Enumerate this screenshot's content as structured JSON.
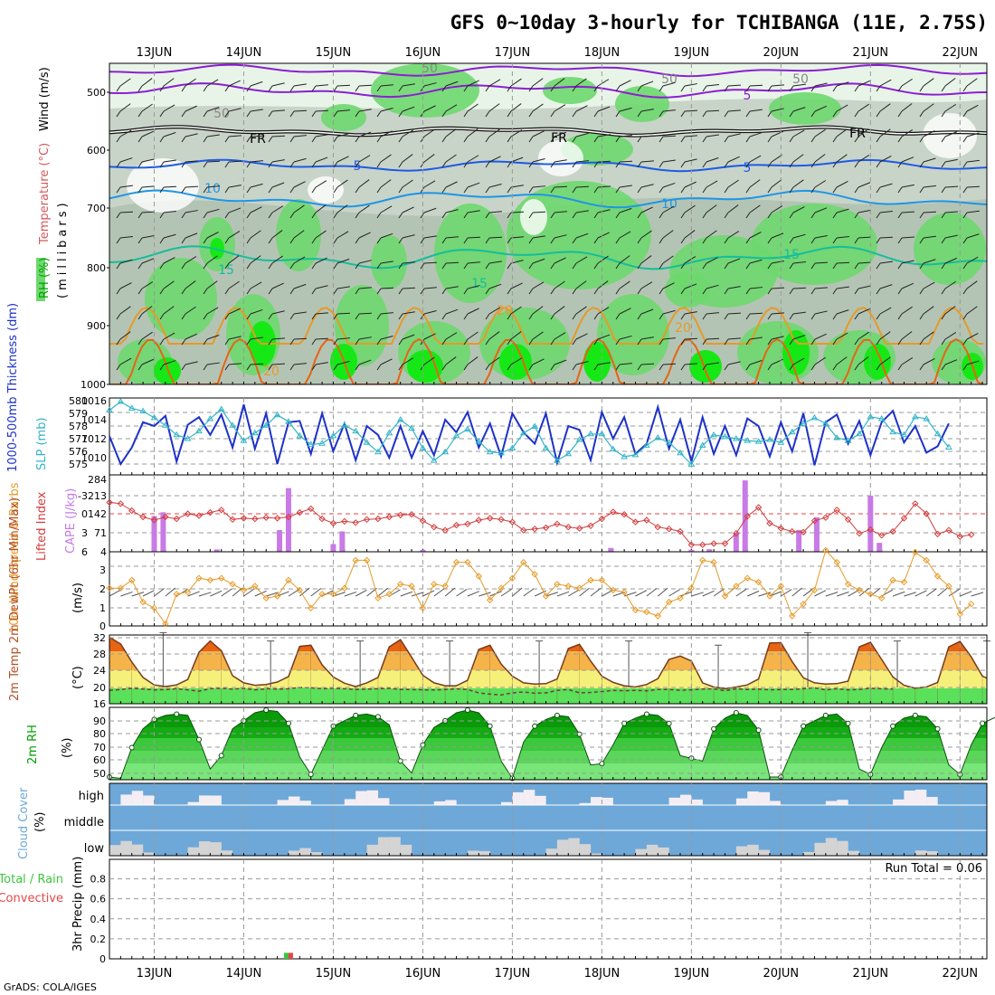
{
  "title": "GFS 0~10day 3-hourly for TCHIBANGA (11E, 2.75S)",
  "credit": "GrADS: COLA/IGES",
  "dates": [
    "13JUN",
    "14JUN",
    "15JUN",
    "16JUN",
    "17JUN",
    "18JUN",
    "19JUN",
    "20JUN",
    "21JUN",
    "22JUN"
  ],
  "colors": {
    "rh_light": "#e8f4e8",
    "rh_mid": "#c8d4c8",
    "rh_dark": "#b4c4b4",
    "rh_green": "#6ed86e",
    "rh_bright": "#16e816",
    "temp_purple": "#8c1ed2",
    "temp_black": "#111111",
    "temp_blue": "#1e5ae6",
    "temp_lightblue": "#1e96e6",
    "temp_teal": "#14be9a",
    "temp_orange": "#e69a28",
    "temp_darkorange": "#e66414",
    "temp_magenta": "#d2147a",
    "thickness": "#1e32c8",
    "slp": "#32b4c8",
    "li": "#d23c3c",
    "cape": "#c87ae6",
    "wind": "#e69a28",
    "barb": "#555555",
    "temp_fill_hot": "#e66414",
    "temp_fill_warm": "#f5b44a",
    "temp_fill_mild": "#f5f07a",
    "dew_fill": "#5ae05a",
    "rh2m_dark": "#0a9a0a",
    "rh2m_mid": "#3cc83c",
    "rh2m_light": "#78e678",
    "cloud_blue": "#6ea8d8",
    "cloud_white": "#f4eef4",
    "cloud_gray": "#d4d4d4",
    "precip_total": "#3cc83c",
    "precip_conv": "#e64646"
  },
  "upper_panel": {
    "ylabel_rh": "RH (%)",
    "ylabel_temp": "Temperature (°C)",
    "ylabel_wind": "Wind (m/s)",
    "ylabel_mb": "(millibars)",
    "ticks": [
      "500",
      "600",
      "700",
      "800",
      "900",
      "1000"
    ],
    "contour_labels": [
      "50",
      "50",
      "50",
      "50",
      "FR",
      "FR",
      "FR",
      "5",
      "5",
      "5",
      "10",
      "10",
      "15",
      "15",
      "15",
      "20",
      "20",
      "20"
    ]
  },
  "panels": {
    "thickness": {
      "ylabel_left": "1000-500mb Thickness (dm)",
      "ylabel_right": "SLP (mb)",
      "ticks_left": [
        "580",
        "579",
        "578",
        "577",
        "576",
        "575"
      ],
      "ticks_right": [
        "1016",
        "1014",
        "1012",
        "1010"
      ]
    },
    "lifted": {
      "ylabel_left": "Lifted Index",
      "ylabel_right": "CAPE (J/kg)",
      "ticks_left": [
        "-3",
        "0",
        "3",
        "6"
      ],
      "ticks_right": [
        "284",
        "213",
        "142",
        "71",
        "4"
      ]
    },
    "wind10": {
      "ylabel": "10m Wind Speed & Barbs",
      "ylabel_unit": "(m/s)",
      "ticks": [
        "3",
        "2",
        "1",
        "0"
      ]
    },
    "temp2m": {
      "ylabel": "2m Temp 2m DewPt (6hr Min/Max)",
      "ylabel_unit": "(°C)",
      "ticks": [
        "32",
        "28",
        "24",
        "20",
        "16"
      ]
    },
    "rh2m": {
      "ylabel": "2m RH",
      "ylabel_unit": "(%)",
      "ticks": [
        "90",
        "80",
        "70",
        "60",
        "50"
      ]
    },
    "cloud": {
      "ylabel": "Cloud Cover",
      "ylabel_unit": "(%)",
      "levels": [
        "high",
        "middle",
        "low"
      ]
    },
    "precip": {
      "ylabel_total": "Total / Rain",
      "ylabel_conv": "Convective",
      "ylabel_unit": "3hr Precip (mm)",
      "ticks": [
        "0.8",
        "0.6",
        "0.4",
        "0.2",
        "0"
      ],
      "run_total": "Run Total = 0.06"
    }
  },
  "chart_data": [
    {
      "type": "line",
      "name": "thickness",
      "title": "1000-500mb Thickness (dm) / SLP (mb)",
      "xrange_days": [
        12.5,
        22.3
      ],
      "series": [
        {
          "name": "1000-500mb Thickness (dm)",
          "color": "#1e32c8",
          "values": [
            577.2,
            575.0,
            576.3,
            578.3,
            578.0,
            578.8,
            575.2,
            578.1,
            578.7,
            577.3,
            578.9,
            576.3,
            579.7,
            576.2,
            579.0,
            575.0,
            578.3,
            578.4,
            575.8,
            579.0,
            576.0,
            578.2,
            575.3,
            578.0,
            577.3,
            575.5,
            578.0,
            575.5,
            577.6,
            575.7,
            578.5,
            577.5,
            579.1,
            576.3,
            578.2,
            575.6,
            579.0,
            577.5,
            576.6,
            579.0,
            575.1,
            578.0,
            577.7,
            575.3,
            579.1,
            577.0,
            578.7,
            575.8,
            576.6,
            579.5,
            576.2,
            578.5,
            575.2,
            578.7,
            575.8,
            578.0,
            575.7,
            578.6,
            578.0,
            575.6,
            578.3,
            576.0,
            579.0,
            574.9,
            578.3,
            578.9,
            576.6,
            578.4,
            575.7,
            578.3,
            579.2,
            576.7,
            578.0,
            575.9,
            576.4,
            578.2
          ]
        },
        {
          "name": "SLP (mb)",
          "color": "#32b4c8",
          "values": [
            1015.0,
            1015.9,
            1015.2,
            1014.9,
            1014.2,
            1013.4,
            1012.4,
            1012.0,
            1012.8,
            1014.1,
            1015.1,
            1013.4,
            1011.8,
            1012.6,
            1013.4,
            1014.5,
            1013.8,
            1012.3,
            1011.4,
            1011.5,
            1012.3,
            1013.4,
            1012.8,
            1011.6,
            1010.6,
            1012.6,
            1014.0,
            1013.1,
            1011.0,
            1009.7,
            1010.6,
            1012.3,
            1013.0,
            1011.7,
            1010.6,
            1010.5,
            1011.0,
            1012.6,
            1013.3,
            1011.0,
            1009.7,
            1010.4,
            1011.9,
            1012.5,
            1012.5,
            1010.9,
            1010.1,
            1010.3,
            1011.3,
            1012.1,
            1011.6,
            1010.5,
            1009.3,
            1011.3,
            1012.4,
            1012.2,
            1012.0,
            1011.8,
            1011.7,
            1011.9,
            1011.6,
            1012.7,
            1013.6,
            1014.2,
            1013.6,
            1012.1,
            1011.8,
            1012.5,
            1014.3,
            1014.1,
            1012.7,
            1012.4,
            1014.3,
            1014.1,
            1012.5,
            1011.1
          ]
        }
      ]
    },
    {
      "type": "bar",
      "name": "cape_li",
      "title": "Lifted Index / CAPE (J/kg)",
      "series": [
        {
          "name": "Lifted Index",
          "color": "#d23c3c",
          "values": [
            -1.8,
            -1.6,
            -0.5,
            0.5,
            1.0,
            0.5,
            0.8,
            0.0,
            0.3,
            -0.2,
            -0.6,
            0.9,
            0.7,
            0.8,
            0.6,
            0.7,
            0.5,
            -0.2,
            -0.8,
            0.8,
            1.5,
            1.2,
            1.4,
            0.9,
            0.8,
            0.5,
            0.2,
            0.1,
            1.1,
            2.1,
            2.6,
            1.8,
            1.6,
            1.0,
            0.7,
            0.9,
            1.3,
            2.6,
            2.4,
            2.2,
            1.6,
            2.1,
            2.3,
            1.9,
            0.8,
            -0.3,
            0.1,
            1.3,
            1.0,
            2.1,
            2.4,
            2.8,
            4.9,
            4.9,
            4.7,
            4.7,
            3.1,
            0.4,
            -1.0,
            1.5,
            2.3,
            2.8,
            2.9,
            1.1,
            0.6,
            -0.6,
            0.9,
            3.1,
            2.5,
            3.4,
            2.8,
            0.7,
            -1.6,
            0.0,
            3.2,
            2.6,
            3.6,
            3.3
          ]
        },
        {
          "name": "CAPE (J/kg)",
          "color": "#c87ae6",
          "values": {
            "13.0": 140,
            "13.1": 155,
            "13.7": 9,
            "14.4": 85,
            "14.5": 250,
            "15.0": 30,
            "15.1": 80,
            "16.0": 8,
            "18.1": 15,
            "19.0": 8,
            "19.2": 10,
            "19.5": 75,
            "19.6": 280,
            "20.2": 85,
            "20.4": 135,
            "21.0": 220,
            "21.1": 35
          }
        }
      ]
    },
    {
      "type": "line",
      "name": "wind10",
      "title": "10m Wind Speed & Barbs (m/s)",
      "series": [
        {
          "name": "10m Wind Speed (m/s)",
          "color": "#e69a28",
          "values": [
            1.9,
            1.9,
            2.3,
            1.2,
            0.9,
            0.1,
            1.6,
            1.7,
            2.4,
            2.3,
            2.4,
            2.1,
            1.8,
            2.0,
            1.4,
            1.5,
            2.3,
            1.8,
            0.9,
            1.6,
            1.6,
            1.9,
            3.3,
            3.3,
            1.4,
            1.6,
            2.1,
            2.0,
            0.9,
            2.1,
            2.0,
            3.2,
            3.2,
            2.5,
            1.3,
            1.9,
            2.4,
            3.2,
            2.6,
            1.5,
            2.1,
            2.0,
            1.9,
            2.3,
            2.3,
            1.8,
            1.7,
            0.8,
            0.7,
            0.5,
            1.2,
            1.4,
            1.9,
            3.3,
            3.2,
            1.5,
            2.0,
            2.4,
            2.2,
            1.5,
            2.0,
            0.5,
            1.1,
            1.8,
            3.8,
            3.2,
            2.1,
            1.8,
            1.6,
            1.4,
            2.3,
            2.2,
            3.7,
            3.3,
            2.5,
            2.0,
            0.6,
            1.1
          ]
        }
      ]
    },
    {
      "type": "area",
      "name": "temp2m",
      "title": "2m Temp / 2m DewPt (6hr Min/Max) (°C)",
      "series": [
        {
          "name": "2m Temp (°C)",
          "color": "#e66414",
          "values": [
            31.9,
            30.3,
            26.0,
            22.3,
            20.5,
            20.1,
            20.5,
            21.8,
            28.3,
            31.0,
            28.7,
            22.7,
            21.0,
            20.4,
            20.6,
            21.2,
            22.5,
            29.7,
            30.0,
            25.3,
            22.4,
            20.9,
            20.1,
            21.0,
            22.3,
            29.6,
            31.3,
            27.1,
            22.8,
            21.0,
            20.3,
            20.3,
            21.6,
            29.0,
            30.0,
            25.5,
            22.6,
            21.0,
            20.7,
            20.8,
            21.9,
            29.2,
            30.2,
            26.2,
            22.6,
            21.1,
            20.3,
            20.0,
            20.6,
            22.0,
            26.6,
            27.4,
            26.2,
            21.0,
            20.0,
            19.6,
            20.0,
            20.5,
            21.9,
            30.5,
            30.6,
            26.1,
            22.2,
            21.0,
            20.7,
            20.8,
            21.4,
            29.6,
            30.7,
            26.6,
            22.4,
            20.4,
            19.7,
            20.0,
            21.1,
            29.6,
            30.9,
            27.2,
            22.6,
            21.4,
            20.5,
            19.8
          ]
        },
        {
          "name": "2m DewPt (°C)",
          "color": "#7a3a3a",
          "values": [
            19.2,
            19.4,
            19.7,
            19.5,
            19.3,
            19.4,
            19.6,
            19.3,
            19.0,
            19.6,
            19.7,
            19.5,
            19.7,
            19.3,
            19.6,
            19.5,
            19.6,
            19.9,
            19.8,
            19.6,
            19.7,
            19.6,
            19.4,
            19.5,
            19.6,
            19.7,
            19.4,
            19.4,
            19.3,
            19.3,
            19.4,
            19.6,
            19.4,
            18.6,
            18.3,
            18.1,
            18.6,
            18.8,
            18.5,
            18.6,
            19.2,
            19.4,
            18.6,
            18.7,
            18.9,
            19.2,
            19.1,
            19.2,
            19.1,
            19.4,
            19.4,
            19.2,
            19.3,
            19.5,
            19.6,
            19.1,
            19.6,
            19.4,
            19.5,
            19.3,
            19.4,
            19.4,
            19.6,
            19.8,
            19.3,
            19.6,
            19.3,
            19.4,
            19.7,
            19.6,
            19.5
          ]
        }
      ],
      "max_markers": {
        "13.1": 33,
        "14.3": 31,
        "15.3": 31,
        "16.3": 31,
        "17.3": 31,
        "18.3": 31,
        "19.3": 30,
        "20.3": 33,
        "21.3": 31,
        "22.3": 31
      }
    },
    {
      "type": "area",
      "name": "rh2m",
      "title": "2m RH (%)",
      "series": [
        {
          "name": "2m RH (%)",
          "color": "#0a9a0a",
          "values": [
            46,
            45,
            68,
            82,
            89,
            92,
            93,
            92,
            74,
            52,
            62,
            82,
            88,
            94,
            96,
            95,
            86,
            61,
            48,
            66,
            84,
            88,
            92,
            93,
            91,
            85,
            58,
            49,
            70,
            83,
            88,
            94,
            96,
            94,
            84,
            58,
            45,
            72,
            84,
            89,
            92,
            91,
            78,
            55,
            56,
            70,
            86,
            90,
            93,
            92,
            86,
            62,
            60,
            58,
            82,
            90,
            94,
            92,
            81,
            46,
            46,
            66,
            84,
            88,
            92,
            93,
            86,
            52,
            48,
            68,
            84,
            90,
            92,
            91,
            82,
            55,
            48,
            70,
            86,
            90,
            92,
            93
          ]
        }
      ]
    },
    {
      "type": "heatmap",
      "name": "cloud",
      "title": "Cloud Cover (%)",
      "levels": [
        "high",
        "middle",
        "low"
      ]
    },
    {
      "type": "bar",
      "name": "precip",
      "title": "3hr Precip (mm)",
      "ylim": [
        0,
        0.95
      ],
      "series": [
        {
          "name": "Total / Rain",
          "color": "#3cc83c",
          "values": {
            "14.5": 0.06
          }
        },
        {
          "name": "Convective",
          "color": "#e64646",
          "values": {
            "14.5": 0.06
          }
        }
      ],
      "run_total": 0.06
    }
  ]
}
